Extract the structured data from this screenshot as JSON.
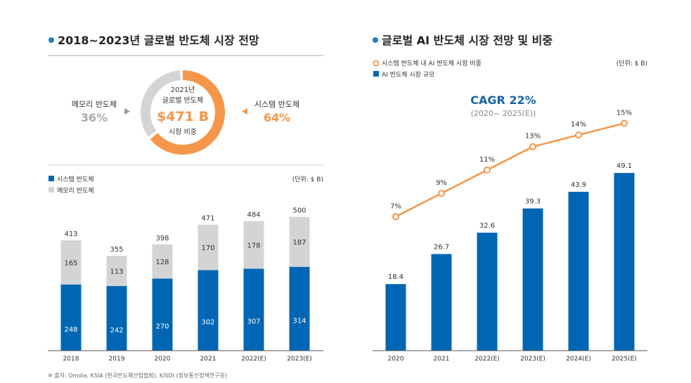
{
  "colors": {
    "system": "#0066b3",
    "memory": "#d4d4d4",
    "orange": "#f5964a",
    "text": "#333333"
  },
  "left": {
    "title": "2018~2023년 글로벌 반도체 시장 전망",
    "donut": {
      "center_year": "2021년",
      "center_label": "글로벌 반도체",
      "center_value": "$471 B",
      "center_sub": "시장 비중",
      "memory_label": "메모리 반도체",
      "memory_pct": "36%",
      "system_label": "시스템 반도체",
      "system_pct": "64%",
      "memory_share": 36,
      "system_share": 64
    },
    "source": "※ 출처: Omdia, KSIA (한국반도체산업협회), KISDI (정보통신정책연구원)"
  },
  "right": {
    "title": "글로벌 AI 반도체 시장 전망 및 비중",
    "cagr": "CAGR 22%",
    "cagr_period": "(2020~ 2025(E))"
  },
  "chart_data": [
    {
      "type": "bar",
      "stacked": true,
      "unit": "(단위: $ B)",
      "categories": [
        "2018",
        "2019",
        "2020",
        "2021",
        "2022(E)",
        "2023(E)"
      ],
      "series": [
        {
          "name": "시스템 반도체",
          "values": [
            248,
            242,
            270,
            302,
            307,
            314
          ],
          "color": "#0066b3"
        },
        {
          "name": "메모리 반도체",
          "values": [
            165,
            113,
            128,
            170,
            178,
            187
          ],
          "color": "#d4d4d4"
        }
      ],
      "totals": [
        413,
        355,
        398,
        471,
        484,
        500
      ],
      "legend": "top-left",
      "grid": false
    },
    {
      "type": "bar+line",
      "unit": "(단위: $ B)",
      "categories": [
        "2020",
        "2021",
        "2022(E)",
        "2023(E)",
        "2024(E)",
        "2025(E)"
      ],
      "series": [
        {
          "name": "시스템 반도체 내 AI 반도체 시장 비중",
          "type": "line",
          "values": [
            7,
            9,
            11,
            13,
            14,
            15
          ],
          "labels": [
            "7%",
            "9%",
            "11%",
            "13%",
            "14%",
            "15%"
          ],
          "color": "#f5964a"
        },
        {
          "name": "AI 반도체 시장 규모",
          "type": "bar",
          "values": [
            18.4,
            26.7,
            32.6,
            39.3,
            43.9,
            49.1
          ],
          "color": "#0066b3"
        }
      ],
      "legend": "top-left",
      "grid": false
    }
  ]
}
